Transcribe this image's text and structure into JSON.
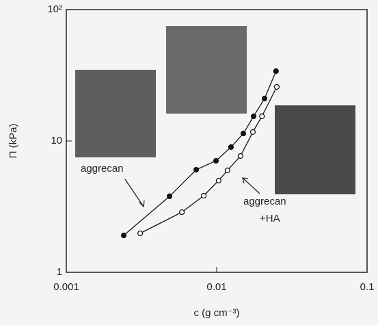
{
  "chart_data": {
    "type": "scatter",
    "x_label": "c (g cm⁻³)",
    "y_label": "Π (kPa)",
    "log_x": true,
    "log_y": true,
    "xlim": [
      0.001,
      0.1
    ],
    "xticks": [
      0.001,
      0.01,
      0.1
    ],
    "ylim": [
      1,
      100
    ],
    "yticks": [
      1,
      10,
      {
        "value": 100,
        "label": "10²"
      }
    ],
    "annotations": [
      [
        "aggrecan"
      ],
      [
        "aggrecan",
        "+HA"
      ]
    ],
    "series": [
      {
        "marker": "filled",
        "color": "#111111",
        "x": [
          0.00241,
          0.00486,
          0.00731,
          0.0099,
          0.01245,
          0.01504,
          0.0176,
          0.0208,
          0.0248
        ],
        "values": [
          1.91,
          3.79,
          6.04,
          7.06,
          8.98,
          11.4,
          15.4,
          21.0,
          34.0
        ]
      },
      {
        "marker": "open",
        "color": "#111111",
        "x": [
          0.0031,
          0.00587,
          0.0082,
          0.0103,
          0.0118,
          0.0144,
          0.0174,
          0.02,
          0.0251
        ],
        "values": [
          1.98,
          2.87,
          3.83,
          4.99,
          5.97,
          7.68,
          11.7,
          15.4,
          25.8
        ]
      }
    ]
  }
}
